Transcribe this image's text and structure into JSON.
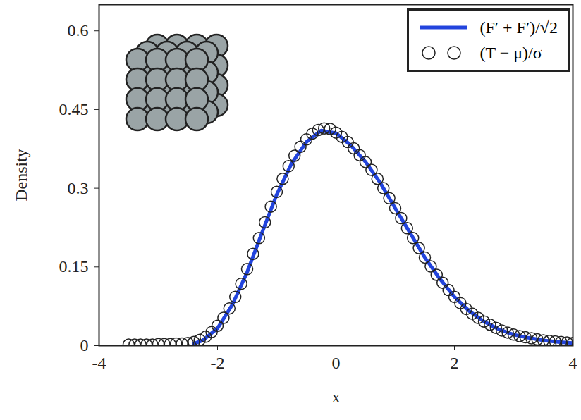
{
  "chart_data": {
    "type": "line",
    "x_label": "x",
    "y_label": "Density",
    "xlim": [
      -4,
      4
    ],
    "xticks": [
      -4,
      -2,
      0,
      2,
      4
    ],
    "ylim": [
      0,
      0.65
    ],
    "yticks": [
      0,
      0.15,
      0.3,
      0.45,
      0.6
    ],
    "legend": "top-right",
    "series": [
      {
        "name": "(F′ + F′)/√2",
        "type": "line",
        "color": "#2244dd",
        "line_style": "solid",
        "x": [
          -2.4,
          -2.25,
          -2.0,
          -1.75,
          -1.5,
          -1.25,
          -1.0,
          -0.75,
          -0.5,
          -0.25,
          0,
          0.25,
          0.5,
          0.75,
          1.0,
          1.25,
          1.5,
          1.75,
          2.0,
          2.25,
          2.5,
          2.75,
          3.0,
          3.25,
          3.5,
          3.75,
          4.0
        ],
        "values": [
          0.004,
          0.01,
          0.033,
          0.078,
          0.14,
          0.215,
          0.288,
          0.347,
          0.388,
          0.41,
          0.405,
          0.382,
          0.35,
          0.31,
          0.262,
          0.215,
          0.168,
          0.128,
          0.093,
          0.066,
          0.046,
          0.031,
          0.021,
          0.015,
          0.01,
          0.007,
          0.005
        ]
      },
      {
        "name": "(T − μ)/σ",
        "type": "scatter",
        "marker": "circle",
        "color": "#222222",
        "x": [
          -3.5,
          -3.4,
          -3.3,
          -3.2,
          -3.1,
          -3.0,
          -2.9,
          -2.8,
          -2.7,
          -2.6,
          -2.5,
          -2.4,
          -2.3,
          -2.2,
          -2.1,
          -2.0,
          -1.9,
          -1.8,
          -1.7,
          -1.6,
          -1.5,
          -1.4,
          -1.3,
          -1.2,
          -1.1,
          -1.0,
          -0.9,
          -0.8,
          -0.7,
          -0.6,
          -0.5,
          -0.4,
          -0.3,
          -0.2,
          -0.1,
          0,
          0.1,
          0.2,
          0.3,
          0.4,
          0.5,
          0.6,
          0.7,
          0.8,
          0.9,
          1.0,
          1.1,
          1.2,
          1.3,
          1.4,
          1.5,
          1.6,
          1.7,
          1.8,
          1.9,
          2.0,
          2.1,
          2.2,
          2.3,
          2.4,
          2.5,
          2.6,
          2.7,
          2.8,
          2.9,
          3.0,
          3.1,
          3.2,
          3.3,
          3.4,
          3.5,
          3.6,
          3.7,
          3.8,
          3.9,
          4.0
        ],
        "values": [
          0.002,
          0.002,
          0.002,
          0.002,
          0.002,
          0.003,
          0.003,
          0.003,
          0.004,
          0.004,
          0.005,
          0.007,
          0.011,
          0.017,
          0.026,
          0.038,
          0.053,
          0.071,
          0.093,
          0.118,
          0.146,
          0.175,
          0.205,
          0.235,
          0.265,
          0.293,
          0.318,
          0.342,
          0.362,
          0.379,
          0.393,
          0.404,
          0.411,
          0.414,
          0.413,
          0.406,
          0.398,
          0.388,
          0.376,
          0.363,
          0.35,
          0.335,
          0.318,
          0.3,
          0.281,
          0.262,
          0.243,
          0.224,
          0.205,
          0.186,
          0.168,
          0.151,
          0.135,
          0.12,
          0.106,
          0.093,
          0.081,
          0.07,
          0.061,
          0.053,
          0.046,
          0.04,
          0.034,
          0.029,
          0.025,
          0.021,
          0.018,
          0.016,
          0.014,
          0.012,
          0.01,
          0.009,
          0.008,
          0.007,
          0.006,
          0.005
        ]
      }
    ]
  }
}
